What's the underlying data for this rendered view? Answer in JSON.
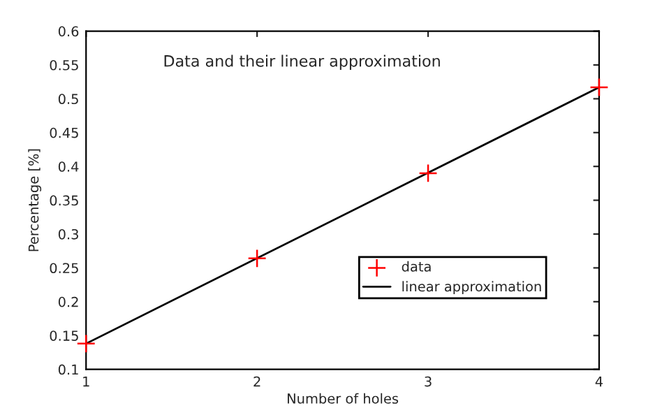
{
  "chart_data": {
    "type": "scatter",
    "title": "Data and their linear approximation",
    "xlabel": "Number of holes",
    "ylabel": "Percentage [%]",
    "x": [
      1,
      2,
      3,
      4
    ],
    "series": [
      {
        "name": "data",
        "color": "#ff0000",
        "marker": "cross",
        "values": [
          0.138,
          0.264,
          0.39,
          0.517
        ]
      },
      {
        "name": "linear approximation",
        "type": "line",
        "color": "#000000",
        "marker": "none",
        "line_style": "solid",
        "x": [
          1,
          4
        ],
        "values": [
          0.138,
          0.517
        ]
      }
    ],
    "xlim": [
      1,
      4
    ],
    "ylim": [
      0.1,
      0.6
    ],
    "xticks": [
      1,
      2,
      3,
      4
    ],
    "yticks": [
      0.1,
      0.15,
      0.2,
      0.25,
      0.3,
      0.35,
      0.4,
      0.45,
      0.5,
      0.55,
      0.6
    ],
    "grid": false,
    "legend": "lower right"
  }
}
